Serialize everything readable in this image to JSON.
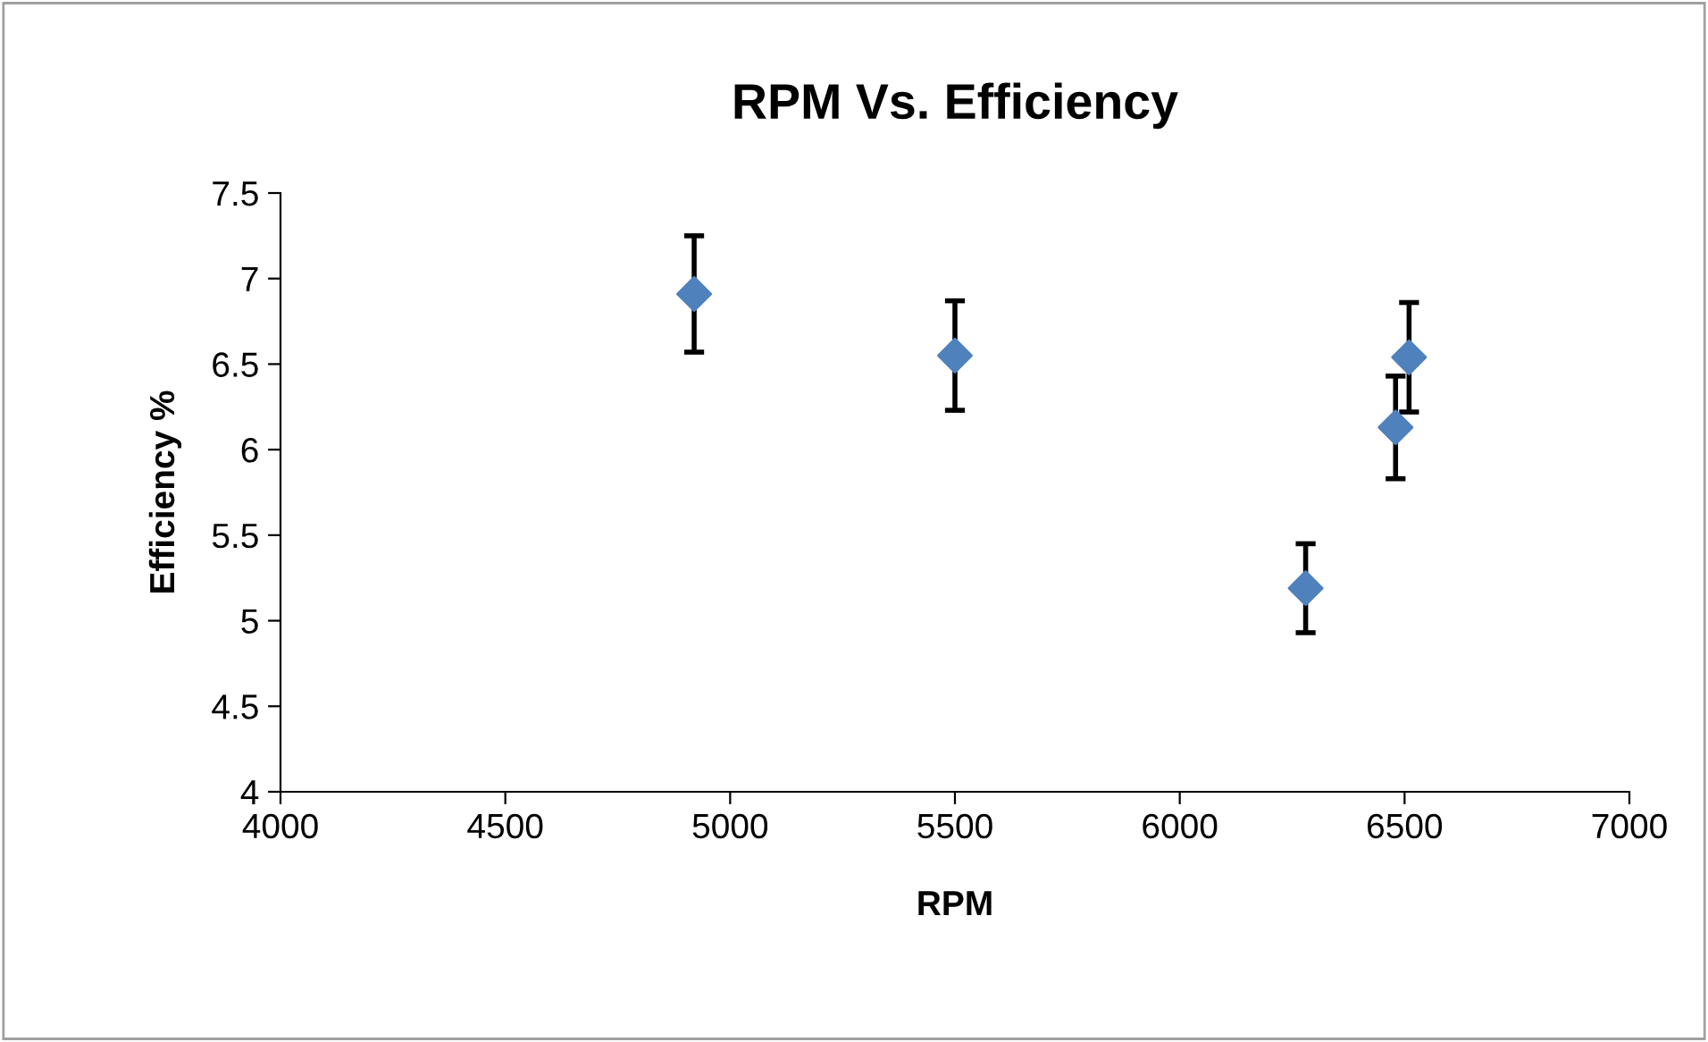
{
  "chart_data": {
    "type": "scatter",
    "title": "RPM Vs. Efficiency",
    "xlabel": "RPM",
    "ylabel": "Efficiency %",
    "x": [
      4920,
      5500,
      6280,
      6480,
      6510
    ],
    "series": [
      {
        "color": "#4f81bd",
        "values": [
          6.91,
          6.55,
          5.19,
          6.13,
          6.54
        ],
        "errors": [
          0.34,
          0.32,
          0.26,
          0.3,
          0.32
        ]
      }
    ],
    "xlim": [
      4000,
      7000
    ],
    "xticks": [
      4000,
      4500,
      5000,
      5500,
      6000,
      6500,
      7000
    ],
    "ylim": [
      4,
      7.5
    ],
    "yticks": [
      4,
      4.5,
      5,
      5.5,
      6,
      6.5,
      7,
      7.5
    ],
    "marker": "diamond",
    "grid": false,
    "legend": false
  }
}
